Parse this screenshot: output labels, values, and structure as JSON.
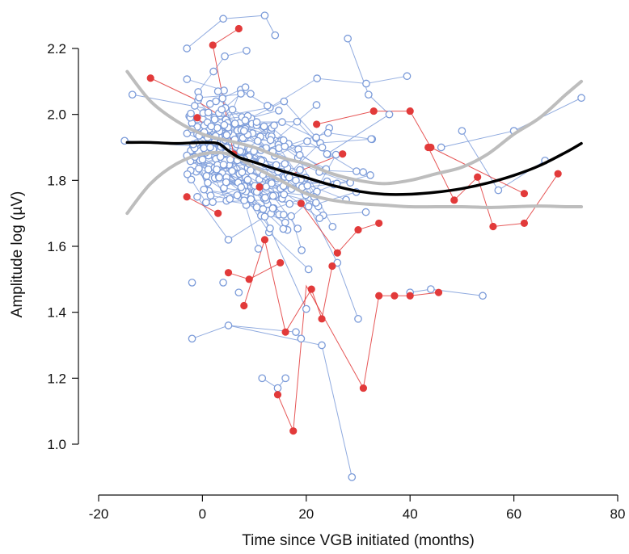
{
  "chart_data": {
    "type": "scatter",
    "title": "",
    "xlabel": "Time since VGB initiated (months)",
    "ylabel": "Amplitude log (µV)",
    "xlim": [
      -20,
      80
    ],
    "ylim": [
      1.0,
      2.2
    ],
    "x_ticks": [
      -20,
      0,
      20,
      40,
      60,
      80
    ],
    "y_ticks": [
      1.0,
      1.2,
      1.4,
      1.6,
      1.8,
      2.0,
      2.2
    ],
    "x_tick_labels": [
      "-20",
      "0",
      "20",
      "40",
      "60",
      "80"
    ],
    "y_tick_labels": [
      "1.0",
      "1.2",
      "1.4",
      "1.6",
      "1.8",
      "2.0",
      "2.2"
    ],
    "grid": false,
    "legend": "none",
    "colors": {
      "group_open": "#7b9bd9",
      "group_filled": "#e23a3a",
      "fit": "#000000",
      "ci": "#bdbdbd"
    },
    "series": [
      {
        "style": "open-circle",
        "color": "#7b9bd9",
        "points": [
          [
            -15,
            1.92
          ],
          [
            -2,
            1.32
          ],
          [
            1.5,
            1.9
          ],
          [
            5,
            1.36
          ],
          [
            18,
            1.34
          ],
          [
            19,
            1.32
          ],
          [
            23,
            1.3
          ],
          [
            28.8,
            0.9
          ],
          [
            54,
            1.45
          ],
          [
            60,
            1.95
          ],
          [
            73,
            2.05
          ],
          [
            -13.5,
            2.06
          ],
          [
            -3,
            2.2
          ],
          [
            12,
            2.3
          ],
          [
            4,
            2.29
          ],
          [
            14,
            2.24
          ],
          [
            28,
            2.23
          ],
          [
            44,
            1.47
          ],
          [
            40,
            1.46
          ],
          [
            16,
            1.2
          ],
          [
            14.5,
            1.17
          ],
          [
            11.5,
            1.2
          ],
          [
            4,
            1.49
          ],
          [
            7,
            1.46
          ],
          [
            -2,
            1.49
          ],
          [
            60,
            1.95
          ],
          [
            50,
            1.95
          ],
          [
            46,
            1.9
          ],
          [
            57,
            1.77
          ],
          [
            66,
            1.86
          ],
          [
            36,
            2.0
          ],
          [
            32,
            2.06
          ],
          [
            24,
            1.88
          ],
          [
            18,
            1.8
          ],
          [
            9,
            1.85
          ],
          [
            8,
            1.95
          ],
          [
            3,
            2.07
          ],
          [
            1,
            1.93
          ],
          [
            -1,
            1.75
          ],
          [
            5,
            1.62
          ],
          [
            12,
            1.69
          ],
          [
            26,
            1.55
          ],
          [
            30,
            1.38
          ],
          [
            20,
            1.41
          ]
        ],
        "links": [
          [
            [
              -15,
              1.92
            ],
            [
              1.5,
              1.9
            ]
          ],
          [
            [
              -2,
              1.32
            ],
            [
              5,
              1.36
            ],
            [
              18,
              1.34
            ],
            [
              19,
              1.32
            ]
          ],
          [
            [
              5,
              1.36
            ],
            [
              23,
              1.3
            ],
            [
              28.8,
              0.9
            ]
          ],
          [
            [
              40,
              1.46
            ],
            [
              44,
              1.47
            ],
            [
              54,
              1.45
            ]
          ],
          [
            [
              46,
              1.9
            ],
            [
              60,
              1.95
            ],
            [
              73,
              2.05
            ]
          ],
          [
            [
              -13.5,
              2.06
            ],
            [
              0,
              2.02
            ],
            [
              12,
              1.9
            ]
          ],
          [
            [
              -3,
              2.2
            ],
            [
              4,
              2.29
            ],
            [
              12,
              2.3
            ],
            [
              14,
              2.24
            ]
          ],
          [
            [
              16,
              1.2
            ],
            [
              14.5,
              1.17
            ],
            [
              11.5,
              1.2
            ]
          ],
          [
            [
              24,
              1.88
            ],
            [
              36,
              2.0
            ],
            [
              32,
              2.06
            ],
            [
              28,
              2.23
            ]
          ],
          [
            [
              3,
              2.07
            ],
            [
              9,
              1.85
            ],
            [
              18,
              1.8
            ],
            [
              26,
              1.55
            ],
            [
              30,
              1.38
            ]
          ],
          [
            [
              -1,
              1.75
            ],
            [
              5,
              1.62
            ],
            [
              12,
              1.69
            ],
            [
              20,
              1.41
            ]
          ],
          [
            [
              50,
              1.95
            ],
            [
              57,
              1.77
            ],
            [
              66,
              1.86
            ]
          ]
        ]
      },
      {
        "style": "filled-circle",
        "color": "#e23a3a",
        "points": [
          [
            -10,
            2.11
          ],
          [
            2,
            2.21
          ],
          [
            7,
            2.26
          ],
          [
            17.5,
            1.04
          ],
          [
            14.5,
            1.15
          ],
          [
            31,
            1.17
          ],
          [
            45.5,
            1.46
          ],
          [
            40,
            1.45
          ],
          [
            37,
            1.45
          ],
          [
            34,
            1.45
          ],
          [
            53,
            1.81
          ],
          [
            56,
            1.66
          ],
          [
            62,
            1.67
          ],
          [
            62,
            1.76
          ],
          [
            68.5,
            1.82
          ],
          [
            48.5,
            1.74
          ],
          [
            44,
            1.9
          ],
          [
            43.5,
            1.9
          ],
          [
            40,
            2.01
          ],
          [
            33,
            2.01
          ],
          [
            22,
            1.97
          ],
          [
            25,
            1.54
          ],
          [
            23,
            1.38
          ],
          [
            21,
            1.47
          ],
          [
            16,
            1.34
          ],
          [
            12,
            1.62
          ],
          [
            8,
            1.42
          ],
          [
            3,
            1.7
          ],
          [
            -3,
            1.75
          ],
          [
            5,
            1.52
          ],
          [
            30,
            1.65
          ],
          [
            34,
            1.67
          ],
          [
            27,
            1.88
          ],
          [
            26,
            1.58
          ],
          [
            19,
            1.73
          ],
          [
            11,
            1.78
          ],
          [
            6,
            1.88
          ],
          [
            -1,
            1.99
          ],
          [
            9,
            1.5
          ],
          [
            15,
            1.55
          ]
        ],
        "links": [
          [
            [
              -10,
              2.11
            ],
            [
              -2,
              2.05
            ],
            [
              3,
              2.0
            ]
          ],
          [
            [
              14.5,
              1.15
            ],
            [
              17.5,
              1.04
            ],
            [
              20,
              1.48
            ],
            [
              31,
              1.17
            ],
            [
              34,
              1.45
            ]
          ],
          [
            [
              34,
              1.45
            ],
            [
              37,
              1.45
            ],
            [
              40,
              1.45
            ],
            [
              45.5,
              1.46
            ]
          ],
          [
            [
              43.5,
              1.9
            ],
            [
              48.5,
              1.74
            ],
            [
              53,
              1.81
            ],
            [
              56,
              1.66
            ],
            [
              62,
              1.67
            ],
            [
              68.5,
              1.82
            ]
          ],
          [
            [
              44,
              1.9
            ],
            [
              62,
              1.76
            ]
          ],
          [
            [
              22,
              1.97
            ],
            [
              33,
              2.01
            ],
            [
              40,
              2.01
            ],
            [
              44,
              1.9
            ]
          ],
          [
            [
              25,
              1.54
            ],
            [
              23,
              1.38
            ],
            [
              21,
              1.47
            ],
            [
              16,
              1.34
            ],
            [
              12,
              1.62
            ],
            [
              8,
              1.42
            ]
          ],
          [
            [
              3,
              1.7
            ],
            [
              -3,
              1.75
            ]
          ],
          [
            [
              5,
              1.52
            ],
            [
              9,
              1.5
            ],
            [
              15,
              1.55
            ]
          ],
          [
            [
              19,
              1.73
            ],
            [
              26,
              1.58
            ],
            [
              30,
              1.65
            ],
            [
              34,
              1.67
            ]
          ],
          [
            [
              11,
              1.78
            ],
            [
              27,
              1.88
            ]
          ],
          [
            [
              -1,
              1.99
            ],
            [
              6,
              1.88
            ],
            [
              2,
              2.21
            ],
            [
              7,
              2.26
            ]
          ]
        ]
      },
      {
        "style": "fit-line",
        "color": "#000000",
        "x": [
          -14.5,
          -10,
          -5,
          0,
          3,
          5,
          7,
          10,
          15,
          20,
          25,
          30,
          35,
          40,
          45,
          50,
          55,
          60,
          65,
          70,
          73
        ],
        "y": [
          1.915,
          1.915,
          1.912,
          1.915,
          1.912,
          1.89,
          1.87,
          1.855,
          1.83,
          1.808,
          1.785,
          1.767,
          1.758,
          1.758,
          1.764,
          1.775,
          1.792,
          1.815,
          1.845,
          1.885,
          1.912
        ]
      },
      {
        "style": "ci-upper",
        "color": "#bdbdbd",
        "x": [
          -14.5,
          -10,
          -5,
          0,
          5,
          10,
          15,
          20,
          25,
          30,
          35,
          40,
          45,
          50,
          55,
          60,
          65,
          70,
          73
        ],
        "y": [
          2.13,
          2.04,
          1.98,
          1.94,
          1.92,
          1.9,
          1.87,
          1.85,
          1.82,
          1.8,
          1.79,
          1.8,
          1.82,
          1.84,
          1.88,
          1.94,
          1.99,
          2.06,
          2.1
        ]
      },
      {
        "style": "ci-lower",
        "color": "#bdbdbd",
        "x": [
          -14.5,
          -10,
          -5,
          0,
          5,
          10,
          15,
          20,
          25,
          30,
          35,
          40,
          45,
          50,
          55,
          60,
          65,
          70,
          73
        ],
        "y": [
          1.7,
          1.79,
          1.85,
          1.88,
          1.88,
          1.84,
          1.8,
          1.76,
          1.74,
          1.73,
          1.725,
          1.72,
          1.72,
          1.72,
          1.718,
          1.72,
          1.722,
          1.72,
          1.72
        ]
      }
    ]
  }
}
